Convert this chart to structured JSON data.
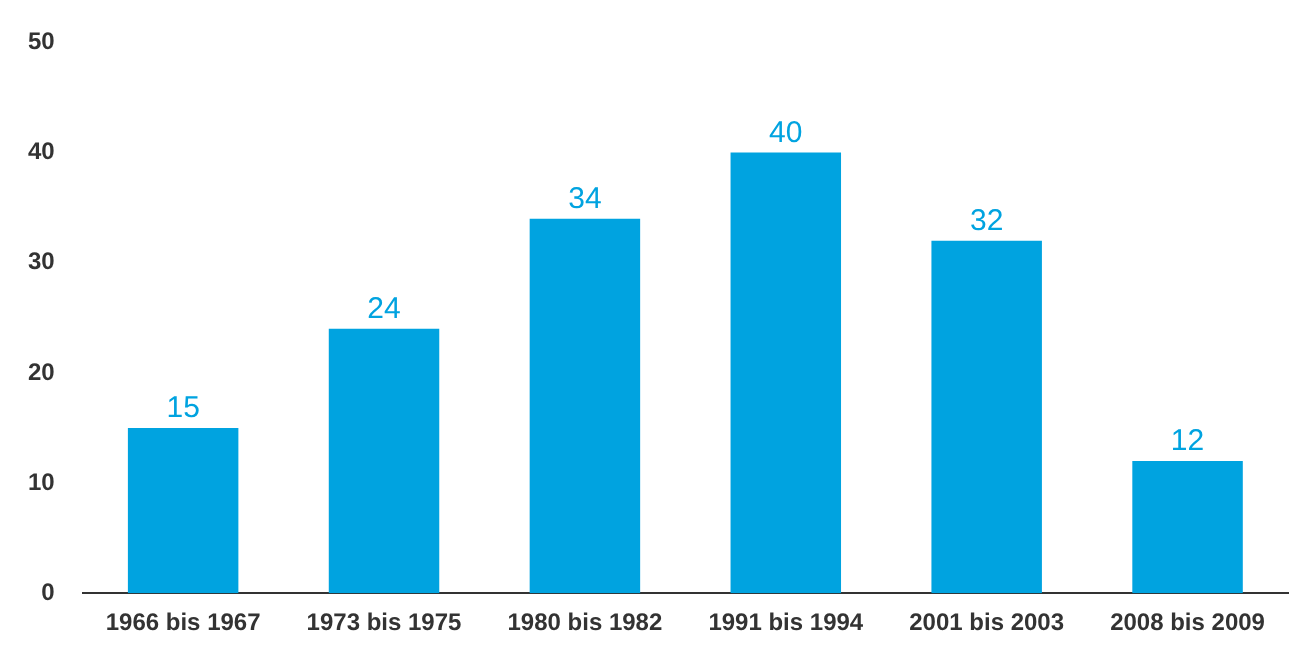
{
  "chart_data": {
    "type": "bar",
    "categories": [
      "1966 bis 1967",
      "1973 bis 1975",
      "1980 bis 1982",
      "1991 bis 1994",
      "2001 bis 2003",
      "2008 bis 2009"
    ],
    "values": [
      15,
      24,
      34,
      40,
      32,
      12
    ],
    "color": "#00a3e0",
    "ylim": [
      0,
      50
    ],
    "yticks": [
      0,
      10,
      20,
      30,
      40,
      50
    ],
    "grid": false,
    "legend": false,
    "data_labels": true
  }
}
